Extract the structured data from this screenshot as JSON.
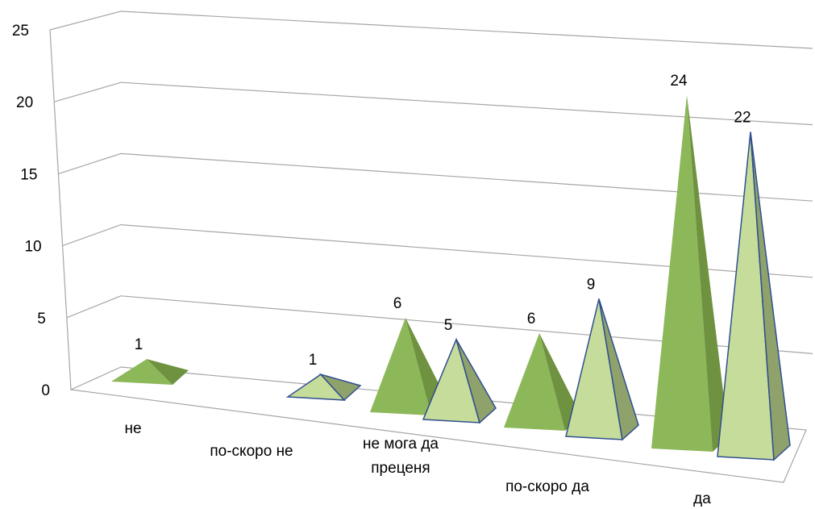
{
  "chart_data": {
    "type": "bar",
    "style": "3d-pyramid",
    "categories": [
      "не",
      "по-скоро не",
      "не мога да преценя",
      "по-скоро да",
      "да"
    ],
    "category_lines": [
      [
        "не"
      ],
      [
        "по-скоро не"
      ],
      [
        "не мога да",
        "преценя"
      ],
      [
        "по-скоро да"
      ],
      [
        "да"
      ]
    ],
    "series": [
      {
        "values": [
          1,
          0,
          6,
          6,
          24
        ],
        "color": "#8db85a"
      },
      {
        "values": [
          0,
          1,
          5,
          9,
          22
        ],
        "color": "#c6dc9a"
      }
    ],
    "ylim": [
      0,
      25
    ],
    "yticks": [
      0,
      5,
      10,
      15,
      20,
      25
    ],
    "grid": true,
    "legend": "none"
  }
}
